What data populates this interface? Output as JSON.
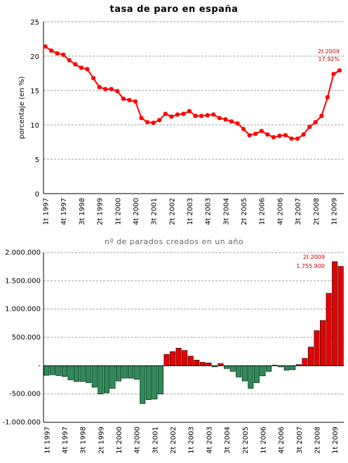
{
  "chart_data": [
    {
      "type": "line",
      "title": "tasa de paro en españa",
      "ylabel": "porcentaje (en %)",
      "xlabel": "",
      "ylim": [
        0,
        25
      ],
      "yticks": [
        0,
        5,
        10,
        15,
        20,
        25
      ],
      "grid": true,
      "color": "#ff0000",
      "x_tick_labels": [
        "1t 1997",
        "4t 1997",
        "3t 1998",
        "2t 1999",
        "1t 2000",
        "4t 2000",
        "3t 2001",
        "2t 2002",
        "1t 2003",
        "4t 2003",
        "3t 2004",
        "2t 2005",
        "1t 2006",
        "4t 2006",
        "3t 2007",
        "2t 2008",
        "1t 2009"
      ],
      "series": [
        {
          "values": [
            21.4,
            20.8,
            20.4,
            20.2,
            19.4,
            18.8,
            18.3,
            18.1,
            16.8,
            15.5,
            15.2,
            15.2,
            14.9,
            13.8,
            13.6,
            13.4,
            11.0,
            10.4,
            10.3,
            10.7,
            11.6,
            11.2,
            11.5,
            11.6,
            12.0,
            11.3,
            11.3,
            11.4,
            11.5,
            11.0,
            10.8,
            10.5,
            10.2,
            9.4,
            8.5,
            8.7,
            9.1,
            8.6,
            8.2,
            8.4,
            8.5,
            8.0,
            8.0,
            8.6,
            9.7,
            10.4,
            11.3,
            14.0,
            17.4,
            17.92
          ]
        }
      ],
      "annotation": [
        "2t 2009",
        "17,92%"
      ]
    },
    {
      "type": "bar",
      "title": "nº de parados creados en un año",
      "xlabel": "",
      "ylabel": "",
      "ylim": [
        -1000000,
        2000000
      ],
      "yticks": [
        -1000000,
        -500000,
        0,
        500000,
        1000000,
        1500000,
        2000000
      ],
      "ytick_labels": [
        "-1.000.000",
        "-500.000",
        "-",
        "500.000",
        "1.000.000",
        "1.500.000",
        "2.000.000"
      ],
      "grid": true,
      "positive_color": "#e60000",
      "negative_color": "#2e8b57",
      "x_tick_labels": [
        "1t 1997",
        "4t 1997",
        "3t 1998",
        "2t 1999",
        "1t 2000",
        "4t 2000",
        "3t 2001",
        "2t 2002",
        "1t 2003",
        "4t 2003",
        "3t 2004",
        "2t 2005",
        "1t 2006",
        "4t 2006",
        "3t 2007",
        "2t 2008",
        "1t 2009"
      ],
      "values": [
        -170000,
        -160000,
        -175000,
        -190000,
        -250000,
        -280000,
        -280000,
        -300000,
        -380000,
        -500000,
        -480000,
        -400000,
        -270000,
        -220000,
        -220000,
        -240000,
        -670000,
        -600000,
        -590000,
        -500000,
        200000,
        250000,
        310000,
        270000,
        170000,
        100000,
        60000,
        50000,
        -20000,
        40000,
        -50000,
        -100000,
        -200000,
        -270000,
        -400000,
        -300000,
        -180000,
        -100000,
        10000,
        -20000,
        -80000,
        -70000,
        20000,
        130000,
        330000,
        620000,
        800000,
        1280000,
        1840000,
        1755900
      ],
      "annotation": [
        "2t 2009",
        "1.755.900"
      ]
    }
  ]
}
